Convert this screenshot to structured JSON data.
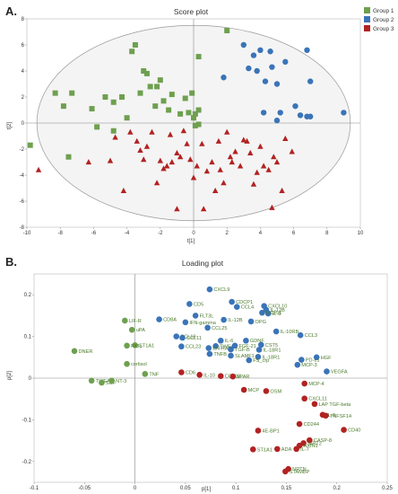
{
  "colors": {
    "group1": "#6ea04f",
    "group2": "#3a74b8",
    "group3": "#b22222",
    "loading_text": "#4a7a2a",
    "axis": "#888888",
    "ellipse_fill": "#f4f4f4"
  },
  "panel_a": {
    "letter": "A."
  },
  "panel_b": {
    "letter": "B."
  },
  "chart_data": [
    {
      "type": "scatter",
      "title": "Score plot",
      "xlabel": "t[1]",
      "ylabel": "t[2]",
      "xlim": [
        -10,
        10
      ],
      "ylim": [
        -8,
        8
      ],
      "x_ticks": [
        -10,
        -8,
        -6,
        -4,
        -2,
        0,
        2,
        4,
        6,
        8,
        10
      ],
      "y_ticks": [
        -8,
        -6,
        -4,
        -2,
        0,
        2,
        4,
        6,
        8
      ],
      "legend_placement": "top-right",
      "ellipse": {
        "center": [
          0,
          0
        ],
        "rx": 9.4,
        "ry": 7.5
      },
      "series": [
        {
          "name": "Group 1",
          "marker": "square",
          "points": [
            [
              -9.8,
              -1.7
            ],
            [
              -8.3,
              2.3
            ],
            [
              -7.8,
              1.3
            ],
            [
              -7.5,
              -2.6
            ],
            [
              -7.3,
              2.3
            ],
            [
              -6.1,
              1.1
            ],
            [
              -5.8,
              -0.3
            ],
            [
              -5.3,
              2.0
            ],
            [
              -4.8,
              1.6
            ],
            [
              -4.8,
              -0.6
            ],
            [
              -4.3,
              2.0
            ],
            [
              -4.0,
              0.4
            ],
            [
              -3.7,
              5.5
            ],
            [
              -3.5,
              6.0
            ],
            [
              -3.2,
              2.3
            ],
            [
              -3.0,
              4.0
            ],
            [
              -2.8,
              3.8
            ],
            [
              -2.6,
              2.8
            ],
            [
              -2.3,
              1.3
            ],
            [
              -2.2,
              2.8
            ],
            [
              -2.0,
              3.3
            ],
            [
              -1.8,
              1.7
            ],
            [
              -1.5,
              1.0
            ],
            [
              -1.3,
              2.2
            ],
            [
              -0.8,
              0.7
            ],
            [
              -0.5,
              1.9
            ],
            [
              -0.3,
              0.8
            ],
            [
              -0.1,
              2.3
            ],
            [
              0.0,
              0.4
            ],
            [
              0.1,
              0.7
            ],
            [
              0.3,
              -0.1
            ],
            [
              0.3,
              1.0
            ],
            [
              0.3,
              5.1
            ],
            [
              2.0,
              7.1
            ],
            [
              0.1,
              -0.2
            ]
          ]
        },
        {
          "name": "Group 2",
          "marker": "circle",
          "points": [
            [
              1.8,
              3.5
            ],
            [
              3.0,
              6.0
            ],
            [
              3.6,
              5.2
            ],
            [
              3.8,
              4.0
            ],
            [
              4.2,
              0.8
            ],
            [
              4.3,
              3.2
            ],
            [
              4.6,
              5.5
            ],
            [
              4.7,
              4.3
            ],
            [
              5.0,
              3.0
            ],
            [
              5.2,
              0.8
            ],
            [
              5.0,
              0.2
            ],
            [
              5.5,
              4.7
            ],
            [
              6.1,
              1.3
            ],
            [
              6.4,
              0.6
            ],
            [
              6.8,
              5.6
            ],
            [
              6.8,
              0.5
            ],
            [
              7.0,
              0.5
            ],
            [
              7.0,
              3.2
            ],
            [
              9.0,
              0.8
            ],
            [
              4.0,
              5.6
            ],
            [
              3.3,
              4.2
            ]
          ]
        },
        {
          "name": "Group 3",
          "marker": "triangle",
          "points": [
            [
              -9.3,
              -3.6
            ],
            [
              -6.3,
              -3.0
            ],
            [
              -5.0,
              -2.9
            ],
            [
              -4.7,
              -1.1
            ],
            [
              -4.2,
              -5.2
            ],
            [
              -3.8,
              -0.7
            ],
            [
              -3.4,
              -1.4
            ],
            [
              -3.2,
              -2.1
            ],
            [
              -3.0,
              -2.8
            ],
            [
              -2.8,
              -1.8
            ],
            [
              -2.5,
              -0.7
            ],
            [
              -2.2,
              -4.6
            ],
            [
              -2.0,
              -2.9
            ],
            [
              -1.8,
              -3.5
            ],
            [
              -1.6,
              -3.3
            ],
            [
              -1.4,
              -0.9
            ],
            [
              -1.3,
              -3.0
            ],
            [
              -1.0,
              -2.3
            ],
            [
              -0.8,
              -2.6
            ],
            [
              -0.6,
              -0.6
            ],
            [
              -0.4,
              -1.6
            ],
            [
              -0.2,
              -2.8
            ],
            [
              0.0,
              -4.2
            ],
            [
              0.2,
              -3.3
            ],
            [
              0.5,
              -1.6
            ],
            [
              0.8,
              -3.7
            ],
            [
              1.1,
              -3.0
            ],
            [
              1.3,
              -5.2
            ],
            [
              1.5,
              -1.4
            ],
            [
              1.6,
              -3.6
            ],
            [
              1.8,
              -4.6
            ],
            [
              2.0,
              -0.7
            ],
            [
              2.2,
              -2.6
            ],
            [
              2.5,
              -2.2
            ],
            [
              2.8,
              -3.3
            ],
            [
              3.0,
              -1.3
            ],
            [
              3.2,
              -1.4
            ],
            [
              3.4,
              -2.3
            ],
            [
              3.6,
              -4.7
            ],
            [
              3.8,
              -3.8
            ],
            [
              4.0,
              -1.8
            ],
            [
              4.2,
              -3.3
            ],
            [
              4.5,
              -3.6
            ],
            [
              4.7,
              -6.5
            ],
            [
              4.8,
              -2.6
            ],
            [
              5.0,
              -3.0
            ],
            [
              5.3,
              -5.2
            ],
            [
              5.5,
              -1.2
            ],
            [
              0.6,
              -6.6
            ],
            [
              -1.0,
              -6.6
            ],
            [
              5.9,
              -2.2
            ],
            [
              2.3,
              -3.0
            ]
          ]
        }
      ]
    },
    {
      "type": "scatter",
      "title": "Loading plot",
      "xlabel": "p[1]",
      "ylabel": "p[2]",
      "xlim": [
        -0.1,
        0.25
      ],
      "ylim": [
        -0.25,
        0.25
      ],
      "x_ticks": [
        "-0.1",
        "-0.05",
        "0",
        "0.05",
        "0.1",
        "0.15",
        "0.2",
        "0.25"
      ],
      "y_ticks": [
        "-0.2",
        "-0.1",
        "0",
        "0.1",
        "0.2"
      ],
      "series": [
        {
          "marker": "circle",
          "color": "group1",
          "points": [
            {
              "x": -0.06,
              "y": 0.065,
              "label": "DNER"
            },
            {
              "x": -0.043,
              "y": -0.006,
              "label": "TWEAK"
            },
            {
              "x": -0.033,
              "y": -0.011,
              "label": "SCF"
            },
            {
              "x": -0.023,
              "y": -0.006,
              "label": "NT-3"
            },
            {
              "x": -0.008,
              "y": 0.034,
              "label": "cortisol"
            },
            {
              "x": 0.01,
              "y": 0.01,
              "label": "TNF"
            },
            {
              "x": -0.003,
              "y": 0.116,
              "label": "uPA"
            },
            {
              "x": -0.01,
              "y": 0.138,
              "label": "LIF-R"
            },
            {
              "x": 0.0,
              "y": 0.079,
              "label": "ST1A1"
            },
            {
              "x": -0.008,
              "y": 0.078,
              "label": "Flt3L"
            }
          ]
        },
        {
          "marker": "circle",
          "color": "group2",
          "points": [
            {
              "x": 0.074,
              "y": 0.213,
              "label": "CXCL9"
            },
            {
              "x": 0.054,
              "y": 0.178,
              "label": "CD5"
            },
            {
              "x": 0.096,
              "y": 0.183,
              "label": "CDCP1"
            },
            {
              "x": 0.101,
              "y": 0.171,
              "label": "CCL4"
            },
            {
              "x": 0.128,
              "y": 0.173,
              "label": "CXCL10"
            },
            {
              "x": 0.13,
              "y": 0.164,
              "label": "IL-12B"
            },
            {
              "x": 0.132,
              "y": 0.155,
              "label": "IL-8"
            },
            {
              "x": 0.126,
              "y": 0.157,
              "label": "MCP-1"
            },
            {
              "x": 0.06,
              "y": 0.15,
              "label": "FLT3L"
            },
            {
              "x": 0.088,
              "y": 0.14,
              "label": "IL-12B"
            },
            {
              "x": 0.115,
              "y": 0.136,
              "label": "OPG"
            },
            {
              "x": 0.024,
              "y": 0.141,
              "label": "CD8A"
            },
            {
              "x": 0.05,
              "y": 0.134,
              "label": "IFN-gamma"
            },
            {
              "x": 0.072,
              "y": 0.121,
              "label": "CCL25"
            },
            {
              "x": 0.14,
              "y": 0.112,
              "label": "IL-10RB"
            },
            {
              "x": 0.041,
              "y": 0.1,
              "label": "CCL19"
            },
            {
              "x": 0.047,
              "y": 0.097,
              "label": "CCL11"
            },
            {
              "x": 0.164,
              "y": 0.103,
              "label": "CCL3"
            },
            {
              "x": 0.085,
              "y": 0.09,
              "label": "IL-6"
            },
            {
              "x": 0.11,
              "y": 0.09,
              "label": "GDNF"
            },
            {
              "x": 0.08,
              "y": 0.077,
              "label": "TWEAK"
            },
            {
              "x": 0.125,
              "y": 0.08,
              "label": "CST5"
            },
            {
              "x": 0.046,
              "y": 0.076,
              "label": "CCL23"
            },
            {
              "x": 0.073,
              "y": 0.072,
              "label": "EN-RAGE"
            },
            {
              "x": 0.099,
              "y": 0.078,
              "label": "FGF-21"
            },
            {
              "x": 0.095,
              "y": 0.069,
              "label": "TGF-B"
            },
            {
              "x": 0.123,
              "y": 0.068,
              "label": "IL-18R1"
            },
            {
              "x": 0.074,
              "y": 0.058,
              "label": "TNFB"
            },
            {
              "x": 0.095,
              "y": 0.054,
              "label": "SLAMF1"
            },
            {
              "x": 0.122,
              "y": 0.051,
              "label": "IL-18R1"
            },
            {
              "x": 0.113,
              "y": 0.043,
              "label": "FS_crp"
            },
            {
              "x": 0.18,
              "y": 0.05,
              "label": "HGF"
            },
            {
              "x": 0.165,
              "y": 0.044,
              "label": "PD-L1"
            },
            {
              "x": 0.161,
              "y": 0.032,
              "label": "MCP-3"
            },
            {
              "x": 0.19,
              "y": 0.016,
              "label": "VEGFA"
            }
          ]
        },
        {
          "marker": "circle",
          "color": "group3",
          "points": [
            {
              "x": 0.046,
              "y": 0.014,
              "label": "CD6"
            },
            {
              "x": 0.064,
              "y": 0.008,
              "label": "IL-10"
            },
            {
              "x": 0.085,
              "y": 0.005,
              "label": "CCL28"
            },
            {
              "x": 0.097,
              "y": 0.004,
              "label": "uPAR"
            },
            {
              "x": 0.108,
              "y": -0.028,
              "label": "MCP"
            },
            {
              "x": 0.13,
              "y": -0.031,
              "label": "OSM"
            },
            {
              "x": 0.168,
              "y": -0.013,
              "label": "MCP-4"
            },
            {
              "x": 0.168,
              "y": -0.049,
              "label": "CXCL11"
            },
            {
              "x": 0.178,
              "y": -0.062,
              "label": "LAP TGF-beta"
            },
            {
              "x": 0.186,
              "y": -0.088,
              "label": "IL-8"
            },
            {
              "x": 0.189,
              "y": -0.09,
              "label": "TNFSF14"
            },
            {
              "x": 0.163,
              "y": -0.11,
              "label": "CD244"
            },
            {
              "x": 0.207,
              "y": -0.124,
              "label": "CD40"
            },
            {
              "x": 0.122,
              "y": -0.126,
              "label": "4E-BP1"
            },
            {
              "x": 0.173,
              "y": -0.149,
              "label": "CASP-8"
            },
            {
              "x": 0.167,
              "y": -0.156,
              "label": "SIRT2"
            },
            {
              "x": 0.163,
              "y": -0.162,
              "label": "AXIN1"
            },
            {
              "x": 0.16,
              "y": -0.17,
              "label": "IL-7"
            },
            {
              "x": 0.117,
              "y": -0.171,
              "label": "ST1A1"
            },
            {
              "x": 0.141,
              "y": -0.17,
              "label": "ADA"
            },
            {
              "x": 0.152,
              "y": -0.218,
              "label": "NRTN"
            },
            {
              "x": 0.149,
              "y": -0.224,
              "label": "STAMBP"
            }
          ]
        }
      ]
    }
  ]
}
